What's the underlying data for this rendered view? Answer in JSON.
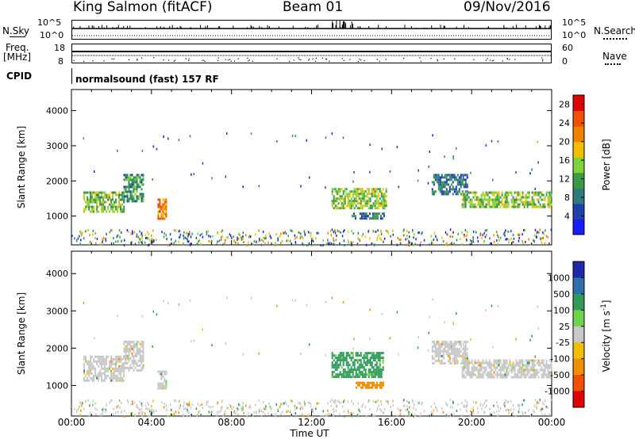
{
  "header": {
    "station": "King Salmon (fitACF)",
    "beam": "Beam 01",
    "date": "09/Nov/2016"
  },
  "strip_labels": {
    "nsky": "N.Sky",
    "nsearch": "N.Search",
    "freq": "Freq.",
    "freq_unit": "[MHz]",
    "nave": "Nave",
    "cpid": "CPID"
  },
  "strip_ticks": {
    "noise_top": "10^5",
    "noise_bottom": "10^0",
    "freq_top": "18",
    "freq_bottom": "8",
    "nave_top": "60",
    "nave_bottom": "0"
  },
  "cpid_text": "normalsound (fast) 157 RF",
  "colors": {
    "power_scale": [
      "#1a1aff",
      "#203fa8",
      "#2f7a7a",
      "#3a9a48",
      "#7fd23a",
      "#f0c000",
      "#f08000",
      "#f05000",
      "#e00000"
    ],
    "velocity_scale": [
      "#1a2aa8",
      "#2f6fb0",
      "#2f9a5a",
      "#6fd24a",
      "#c8c8c8",
      "#f0c000",
      "#f09000",
      "#f05000",
      "#e00000"
    ],
    "scatter_gray": "#c8c8c8"
  },
  "chart_data": [
    {
      "type": "heatmap",
      "name": "Power",
      "xlabel": "",
      "ylabel": "Slant Range [km]",
      "xlim": [
        "00:00",
        "24:00"
      ],
      "ylim": [
        180,
        4600
      ],
      "x_ticks": [
        "00:00",
        "04:00",
        "08:00",
        "12:00",
        "16:00",
        "20:00",
        "00:00"
      ],
      "y_ticks": [
        1000,
        2000,
        3000,
        4000
      ],
      "colorbar_label": "Power [dB]",
      "colorbar_ticks": [
        4,
        8,
        12,
        16,
        20,
        24,
        28
      ],
      "colorbar_range": [
        0,
        30
      ],
      "regions": [
        {
          "t_start": 0.6,
          "t_end": 2.6,
          "r_min": 1150,
          "r_max": 1700,
          "level": 14
        },
        {
          "t_start": 2.6,
          "t_end": 3.6,
          "r_min": 1400,
          "r_max": 2200,
          "level": 10
        },
        {
          "t_start": 4.3,
          "t_end": 4.7,
          "r_min": 950,
          "r_max": 1500,
          "level": 22
        },
        {
          "t_start": 13.0,
          "t_end": 15.7,
          "r_min": 1250,
          "r_max": 1800,
          "level": 15
        },
        {
          "t_start": 14.0,
          "t_end": 15.6,
          "r_min": 950,
          "r_max": 1100,
          "level": 8
        },
        {
          "t_start": 18.0,
          "t_end": 19.8,
          "r_min": 1600,
          "r_max": 2200,
          "level": 8
        },
        {
          "t_start": 19.5,
          "t_end": 24.0,
          "r_min": 1250,
          "r_max": 1700,
          "level": 14
        }
      ]
    },
    {
      "type": "heatmap",
      "name": "Velocity",
      "xlabel": "Time UT",
      "ylabel": "Slant Range [km]",
      "xlim": [
        "00:00",
        "24:00"
      ],
      "ylim": [
        180,
        4600
      ],
      "x_ticks": [
        "00:00",
        "04:00",
        "08:00",
        "12:00",
        "16:00",
        "20:00",
        "00:00"
      ],
      "y_ticks": [
        1000,
        2000,
        3000,
        4000
      ],
      "colorbar_label": "Velocity [m s^-1]",
      "colorbar_ticks": [
        "1000",
        "500",
        "100",
        "25",
        "-25",
        "-100",
        "-500",
        "-1000"
      ],
      "regions": [
        {
          "t_start": 0.6,
          "t_end": 2.6,
          "r_min": 1150,
          "r_max": 1800,
          "velocity": 0
        },
        {
          "t_start": 2.6,
          "t_end": 3.6,
          "r_min": 1400,
          "r_max": 2200,
          "velocity": 0
        },
        {
          "t_start": 4.3,
          "t_end": 4.7,
          "r_min": 950,
          "r_max": 1400,
          "velocity": 0
        },
        {
          "t_start": 13.0,
          "t_end": 15.6,
          "r_min": 1250,
          "r_max": 1900,
          "velocity": 150
        },
        {
          "t_start": 14.2,
          "t_end": 15.6,
          "r_min": 950,
          "r_max": 1100,
          "velocity": -200
        },
        {
          "t_start": 18.0,
          "t_end": 19.8,
          "r_min": 1600,
          "r_max": 2200,
          "velocity": 0
        },
        {
          "t_start": 19.5,
          "t_end": 24.0,
          "r_min": 1250,
          "r_max": 1700,
          "velocity": 0
        }
      ]
    }
  ]
}
